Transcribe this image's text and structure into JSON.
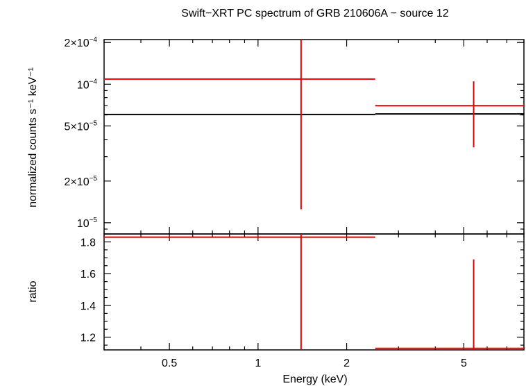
{
  "chart_data": {
    "type": "scatter",
    "title": "Swift−XRT PC spectrum of GRB 210606A − source 12",
    "xlabel": "Energy (keV)",
    "x_scale": "log",
    "xlim": [
      0.3,
      8.0
    ],
    "x_ticks": [
      {
        "value": 0.5,
        "label": "0.5"
      },
      {
        "value": 1,
        "label": "1"
      },
      {
        "value": 2,
        "label": "2"
      },
      {
        "value": 5,
        "label": "5"
      }
    ],
    "panels": [
      {
        "id": "spectrum",
        "ylabel": "normalized counts s⁻¹ keV⁻¹",
        "y_scale": "log",
        "ylim": [
          8.3e-06,
          0.00021
        ],
        "y_ticks": [
          {
            "value": 1e-05,
            "mantissa": "",
            "exp": "−5",
            "prefix": "10"
          },
          {
            "value": 2e-05,
            "mantissa": "2×",
            "exp": "−5",
            "prefix": "10"
          },
          {
            "value": 5e-05,
            "mantissa": "5×",
            "exp": "−5",
            "prefix": "10"
          },
          {
            "value": 0.0001,
            "mantissa": "",
            "exp": "−4",
            "prefix": "10"
          },
          {
            "value": 0.0002,
            "mantissa": "2×",
            "exp": "−4",
            "prefix": "10"
          }
        ],
        "data": [
          {
            "x_lo": 0.3,
            "x_hi": 2.5,
            "x": 1.4,
            "y": 0.000109,
            "y_lo": 1.25e-05,
            "y_hi": 0.00021
          },
          {
            "x_lo": 2.5,
            "x_hi": 8.0,
            "x": 5.4,
            "y": 7e-05,
            "y_lo": 3.5e-05,
            "y_hi": 0.000105
          }
        ],
        "model": [
          {
            "x_lo": 0.3,
            "x_hi": 2.5,
            "y": 6.05e-05
          },
          {
            "x_lo": 2.5,
            "x_hi": 8.0,
            "y": 6.1e-05
          }
        ]
      },
      {
        "id": "ratio",
        "ylabel": "ratio",
        "y_scale": "linear",
        "ylim": [
          1.12,
          1.85
        ],
        "y_ticks": [
          {
            "value": 1.2,
            "label": "1.2"
          },
          {
            "value": 1.4,
            "label": "1.4"
          },
          {
            "value": 1.6,
            "label": "1.6"
          },
          {
            "value": 1.8,
            "label": "1.8"
          }
        ],
        "data": [
          {
            "x_lo": 0.3,
            "x_hi": 2.5,
            "x": 1.4,
            "y": 1.83,
            "y_lo": 1.12,
            "y_hi": 1.85
          },
          {
            "x_lo": 2.5,
            "x_hi": 8.0,
            "x": 5.4,
            "y": 1.13,
            "y_lo": 1.12,
            "y_hi": 1.69
          }
        ]
      }
    ],
    "colors": {
      "data": "#e00000",
      "model": "#000000",
      "axes": "#000000"
    }
  }
}
